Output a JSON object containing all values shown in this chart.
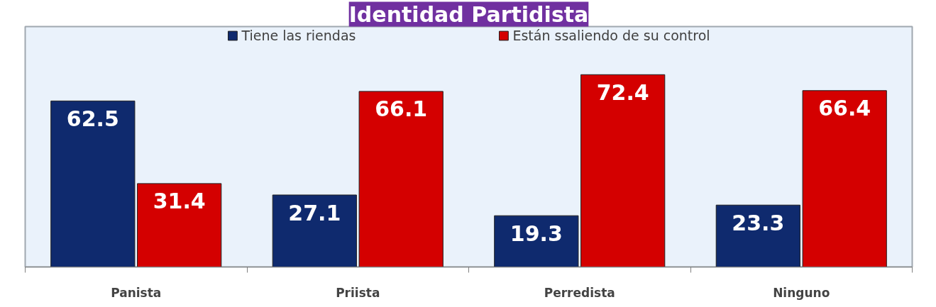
{
  "chart_data": {
    "type": "bar",
    "title": "Identidad Partidista",
    "categories": [
      "Panista",
      "Priista",
      "Perredista",
      "Ninguno"
    ],
    "series": [
      {
        "name": "Tiene las riendas",
        "color": "#0f2a6e",
        "values": [
          62.5,
          27.1,
          19.3,
          23.3
        ]
      },
      {
        "name": "Están ssaliendo de su control",
        "color": "#d40000",
        "values": [
          31.4,
          66.1,
          72.4,
          66.4
        ]
      }
    ],
    "tick_labels": "x",
    "data_labels": true,
    "legend": "top",
    "grid": false
  }
}
